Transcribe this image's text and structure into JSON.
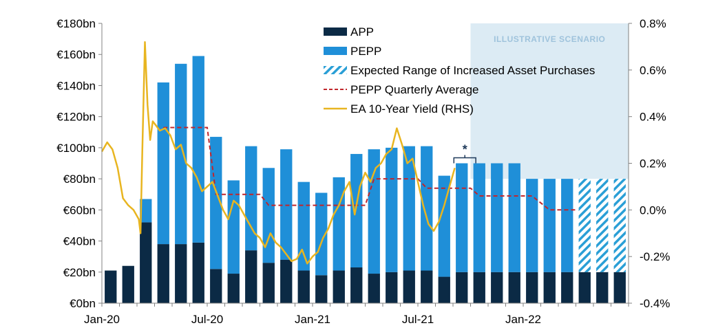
{
  "chart_data": {
    "type": "bar",
    "title": "",
    "xlabel": "",
    "ylabel": "",
    "ylim": [
      0,
      180
    ],
    "y2lim": [
      -0.4,
      0.8
    ],
    "y_ticks": [
      "€0bn",
      "€20bn",
      "€40bn",
      "€60bn",
      "€80bn",
      "€100bn",
      "€120bn",
      "€140bn",
      "€160bn",
      "€180bn"
    ],
    "y2_ticks": [
      "-0.4%",
      "-0.2%",
      "0.0%",
      "0.2%",
      "0.4%",
      "0.6%",
      "0.8%"
    ],
    "x_tick_labels": [
      "Jan-20",
      "Jul-20",
      "Jan-21",
      "Jul-21",
      "Jan-22"
    ],
    "months": [
      "Jan-20",
      "Feb-20",
      "Mar-20",
      "Apr-20",
      "May-20",
      "Jun-20",
      "Jul-20",
      "Aug-20",
      "Sep-20",
      "Oct-20",
      "Nov-20",
      "Dec-20",
      "Jan-21",
      "Feb-21",
      "Mar-21",
      "Apr-21",
      "May-21",
      "Jun-21",
      "Jul-21",
      "Aug-21",
      "Sep-21",
      "Oct-21",
      "Nov-21",
      "Dec-21",
      "Jan-22",
      "Feb-22",
      "Mar-22",
      "Apr-22",
      "May-22",
      "Jun-22"
    ],
    "series": [
      {
        "name": "APP",
        "color": "#0b2a45",
        "values": [
          21,
          24,
          52,
          38,
          38,
          39,
          22,
          19,
          34,
          26,
          28,
          21,
          18,
          21,
          23,
          19,
          20,
          21,
          21,
          17,
          20,
          20,
          20,
          20,
          20,
          20,
          20,
          20,
          20,
          20
        ]
      },
      {
        "name": "PEPP",
        "color": "#1f8fd8",
        "values": [
          0,
          0,
          15,
          104,
          116,
          120,
          85,
          60,
          67,
          61,
          71,
          57,
          53,
          60,
          73,
          80,
          80,
          80,
          80,
          65,
          70,
          70,
          70,
          70,
          60,
          60,
          60,
          0,
          0,
          0
        ]
      },
      {
        "name": "Expected Range of Increased Asset Purchases",
        "color": "#2a9fd6",
        "pattern": "hatched",
        "values": [
          0,
          0,
          0,
          0,
          0,
          0,
          0,
          0,
          0,
          0,
          0,
          0,
          0,
          0,
          0,
          0,
          0,
          0,
          0,
          0,
          0,
          0,
          0,
          0,
          0,
          0,
          0,
          60,
          60,
          60
        ]
      },
      {
        "name": "PEPP Quarterly Average",
        "color": "#c0262c",
        "style": "dashed",
        "x": [
          3.5,
          6,
          6.5,
          9,
          9.5,
          12,
          12.5,
          15,
          15.5,
          18,
          18.5,
          21,
          21.5,
          24,
          24.5,
          25.5,
          27
        ],
        "values": [
          113,
          113,
          70,
          70,
          63,
          63,
          63,
          63,
          80,
          80,
          74,
          74,
          69,
          69,
          69,
          60,
          60
        ]
      },
      {
        "name": "EA 10-Year Yield (RHS)",
        "color": "#e8b520",
        "axis": "right",
        "x": [
          0,
          0.3,
          0.6,
          0.9,
          1.2,
          1.5,
          1.8,
          2.1,
          2.2,
          2.3,
          2.45,
          2.6,
          2.75,
          2.9,
          3.1,
          3.3,
          3.6,
          3.9,
          4.2,
          4.5,
          4.8,
          5.1,
          5.4,
          5.7,
          6.0,
          6.3,
          6.6,
          6.9,
          7.2,
          7.5,
          7.8,
          8.1,
          8.4,
          8.7,
          9.0,
          9.3,
          9.6,
          9.9,
          10.2,
          10.5,
          10.8,
          11.1,
          11.4,
          11.7,
          12.0,
          12.3,
          12.6,
          12.9,
          13.2,
          13.5,
          13.8,
          14.1,
          14.4,
          14.7,
          15.0,
          15.3,
          15.6,
          15.9,
          16.2,
          16.5,
          16.8,
          17.1,
          17.4,
          17.7,
          18.0,
          18.3,
          18.6,
          18.9,
          19.2,
          19.5,
          19.8,
          20.1
        ],
        "values": [
          0.25,
          0.29,
          0.26,
          0.18,
          0.05,
          0.02,
          0.0,
          -0.04,
          -0.1,
          0.25,
          0.72,
          0.45,
          0.3,
          0.38,
          0.36,
          0.34,
          0.35,
          0.32,
          0.26,
          0.28,
          0.2,
          0.18,
          0.14,
          0.08,
          0.1,
          0.12,
          0.06,
          0.0,
          -0.04,
          0.04,
          0.02,
          -0.02,
          -0.06,
          -0.1,
          -0.12,
          -0.16,
          -0.1,
          -0.14,
          -0.16,
          -0.19,
          -0.22,
          -0.21,
          -0.17,
          -0.23,
          -0.2,
          -0.18,
          -0.12,
          -0.08,
          -0.02,
          0.02,
          0.08,
          0.12,
          -0.02,
          0.1,
          0.16,
          0.12,
          0.18,
          0.2,
          0.24,
          0.26,
          0.35,
          0.28,
          0.2,
          0.22,
          0.12,
          0.02,
          -0.06,
          -0.09,
          -0.05,
          0.02,
          0.1,
          0.18
        ]
      }
    ],
    "legend": [
      "APP",
      "PEPP",
      "Expected Range of Increased Asset Purchases",
      "PEPP Quarterly Average",
      "EA 10-Year Yield (RHS)"
    ],
    "legend_position": "top-center",
    "scenario_label": "ILLUSTRATIVE SCENARIO",
    "scenario_start_month_index": 21,
    "annotation": "*",
    "annotation_month_index": 20,
    "grid": false
  },
  "colors": {
    "app": "#0b2a45",
    "pepp": "#1f8fd8",
    "hatch": "#2a9fd6",
    "average": "#c0262c",
    "yield": "#e8b520",
    "scenario_shade": "#dcebf4"
  }
}
